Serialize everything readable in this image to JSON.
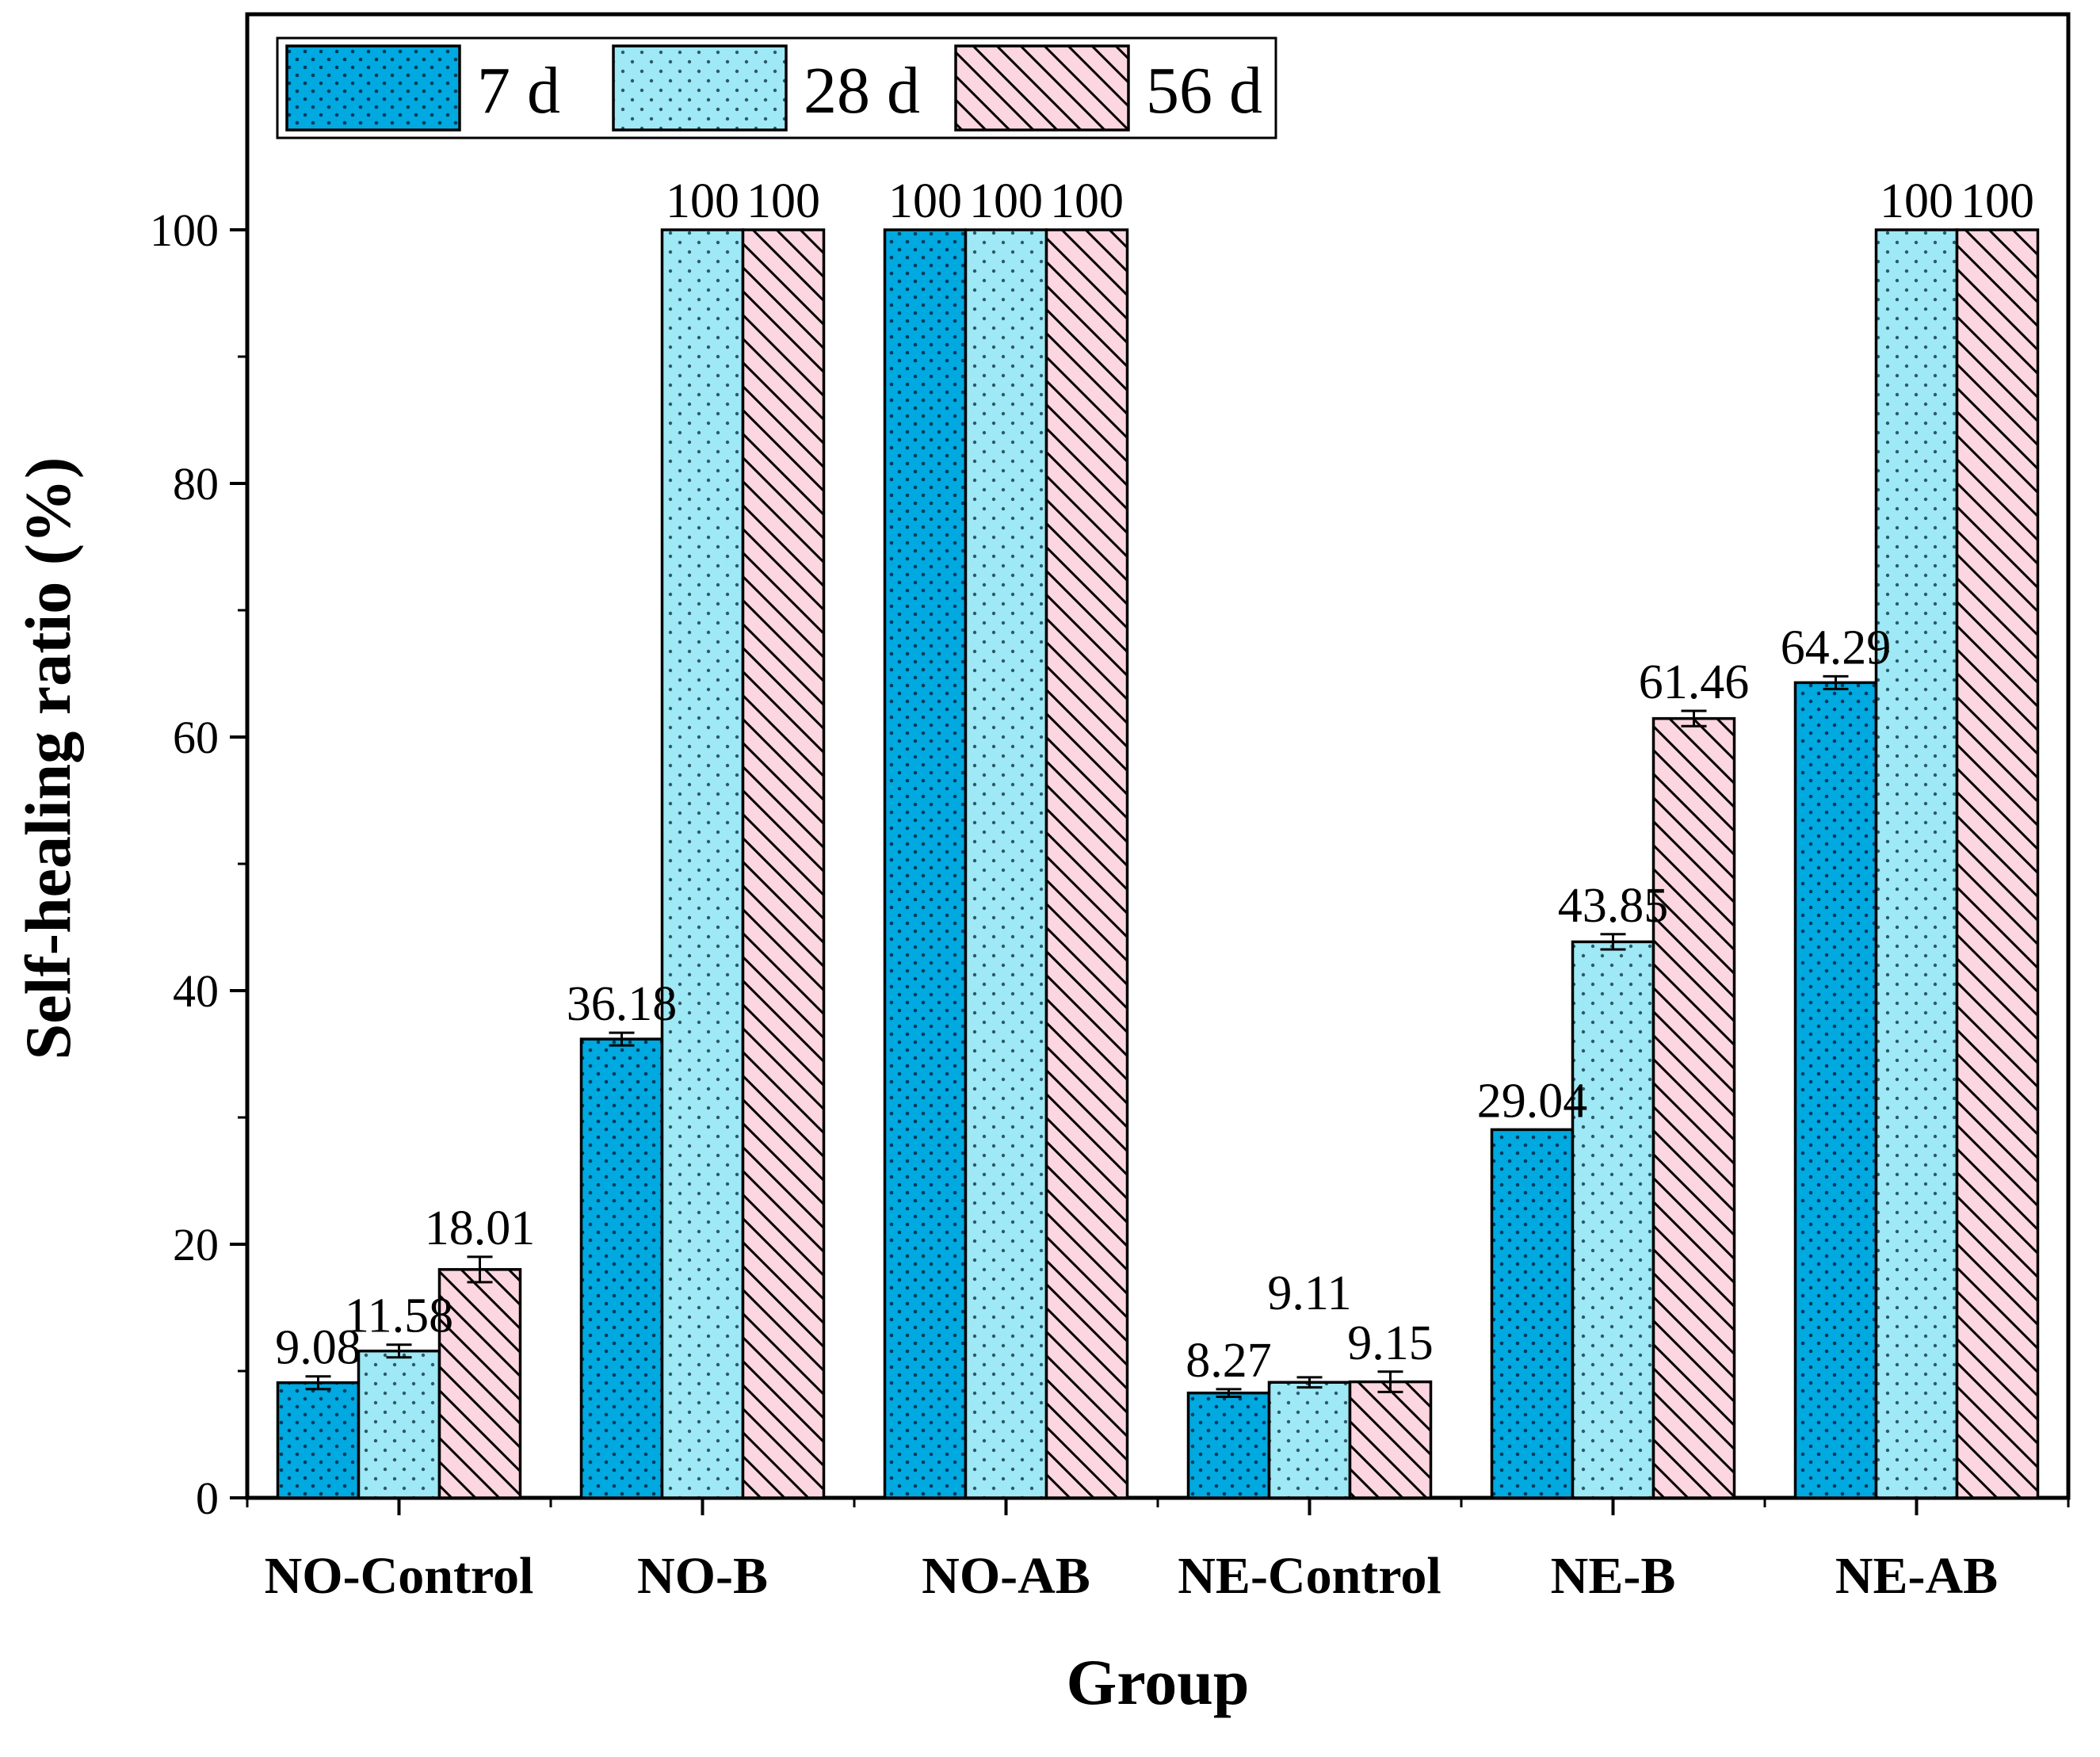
{
  "chart_data": {
    "type": "bar",
    "title": "",
    "xlabel": "Group",
    "ylabel": "Self-healing ratio (%)",
    "ylim": [
      0,
      117
    ],
    "yticks": [
      0,
      20,
      40,
      60,
      80,
      100
    ],
    "grid": false,
    "legend_position": "top-left",
    "categories": [
      "NO-Control",
      "NO-B",
      "NO-AB",
      "NE-Control",
      "NE-B",
      "NE-AB"
    ],
    "series": [
      {
        "name": "7 d",
        "color": "#00a9e0",
        "pattern": "dots",
        "values": [
          9.08,
          36.18,
          100,
          8.27,
          29.04,
          64.29
        ],
        "errors": [
          0.5,
          0.5,
          0,
          0.3,
          0,
          0.5
        ],
        "labels": [
          "9.08",
          "36.18",
          "100",
          "8.27",
          "29.04",
          "64.29"
        ]
      },
      {
        "name": "28 d",
        "color": "#9fe8f5",
        "pattern": "sparse-dots",
        "values": [
          11.58,
          100,
          100,
          9.11,
          43.85,
          100
        ],
        "errors": [
          0.5,
          0,
          0,
          0.4,
          0.6,
          0
        ],
        "labels": [
          "11.58",
          "100",
          "100",
          "9.11",
          "43.85",
          "100"
        ]
      },
      {
        "name": "56 d",
        "color": "#fcd6e0",
        "pattern": "diagonal",
        "values": [
          18.01,
          100,
          100,
          9.15,
          61.46,
          100
        ],
        "errors": [
          1.0,
          0,
          0,
          0.8,
          0.6,
          0
        ],
        "labels": [
          "18.01",
          "100",
          "100",
          "9.15",
          "61.46",
          "100"
        ]
      }
    ]
  }
}
